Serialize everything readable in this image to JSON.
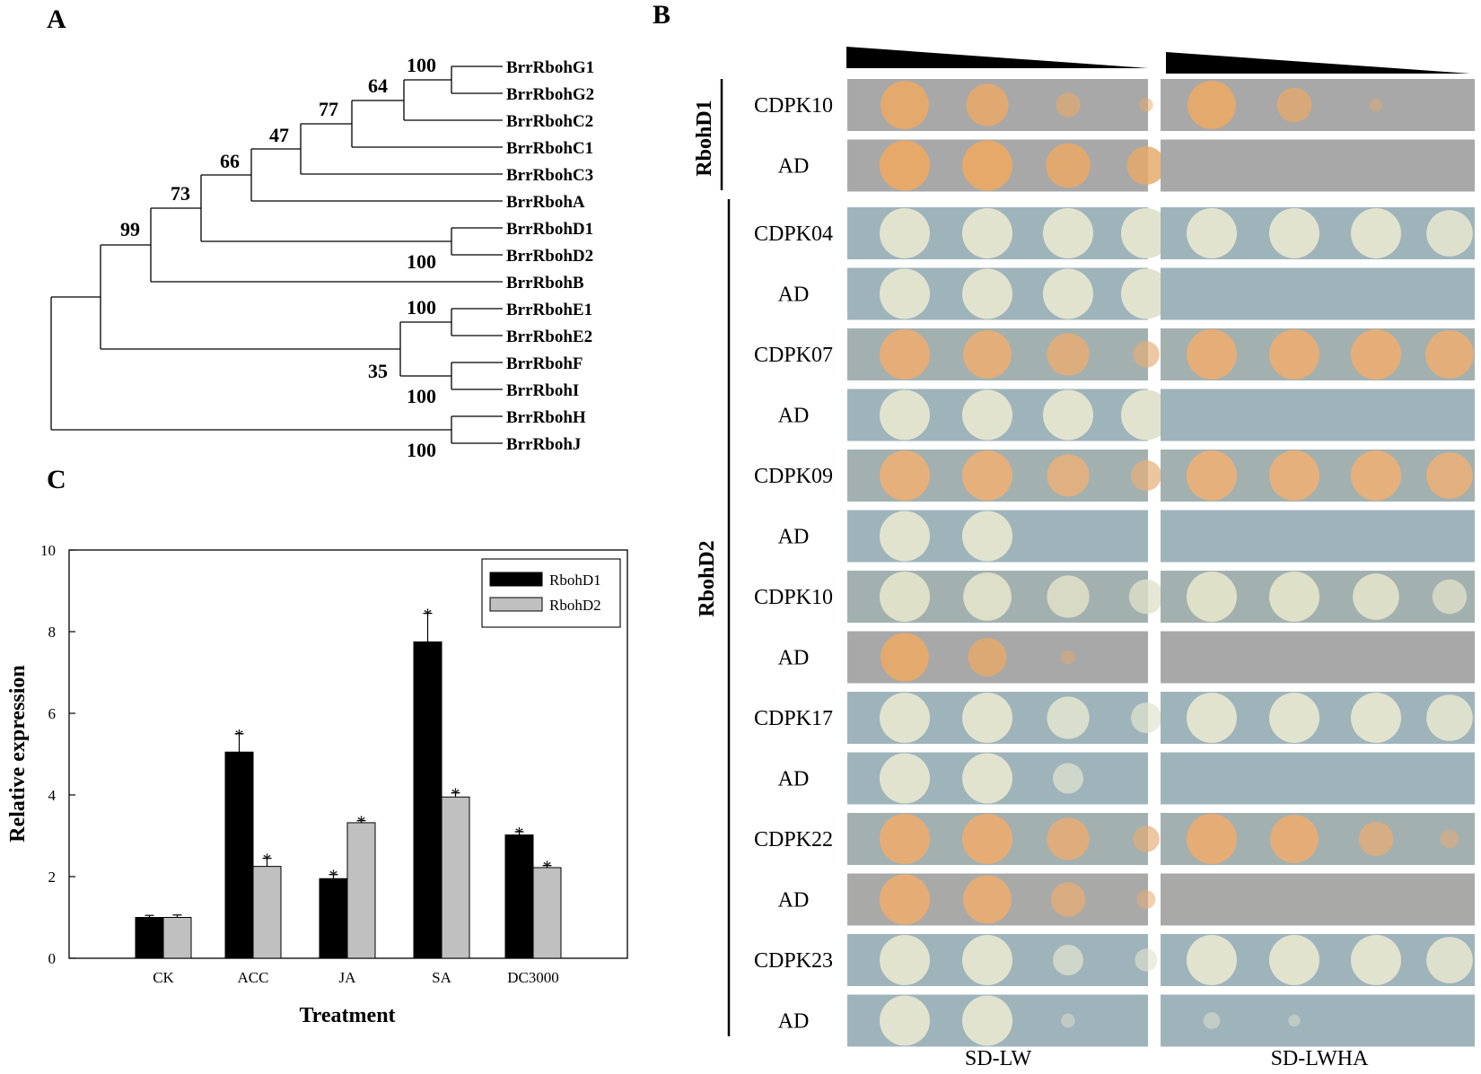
{
  "panels": {
    "a": "A",
    "b": "B",
    "c": "C"
  },
  "tree": {
    "taxa": [
      "BrrRbohG1",
      "BrrRbohG2",
      "BrrRbohC2",
      "BrrRbohC1",
      "BrrRbohC3",
      "BrrRbohA",
      "BrrRbohD1",
      "BrrRbohD2",
      "BrrRbohB",
      "BrrRbohE1",
      "BrrRbohE2",
      "BrrRbohF",
      "BrrRbohI",
      "BrrRbohH",
      "BrrRbohJ"
    ],
    "bootstrap": {
      "g1g2": "100",
      "g_c2": "64",
      "c1": "77",
      "c3": "47",
      "a": "66",
      "d": "73",
      "b": "99",
      "d1d2": "100",
      "e1e2": "100",
      "efi": "35",
      "fi": "100",
      "hj": "100"
    }
  },
  "y2h": {
    "groups": [
      "RbohD1",
      "RbohD2"
    ],
    "media": [
      "SD-LW",
      "SD-LWHA"
    ],
    "rows": [
      {
        "label": "CDPK10",
        "lw": [
          0.95,
          0.8,
          0.35,
          0.08
        ],
        "lwha": [
          0.95,
          0.6,
          0.05,
          0.0
        ],
        "plate": "#a9a8a8",
        "colony": "#e6a96a"
      },
      {
        "label": "AD",
        "lw": [
          1.0,
          1.0,
          0.85,
          0.7
        ],
        "lwha": [
          0.0,
          0.0,
          0.0,
          0.0
        ],
        "plate": "#a9a8a8",
        "colony": "#e6a96a"
      },
      {
        "label": "CDPK04",
        "lw": [
          1.0,
          1.0,
          1.0,
          1.0
        ],
        "lwha": [
          1.0,
          1.0,
          1.0,
          0.9
        ],
        "plate": "#9fb3bb",
        "colony": "#e1e3cf"
      },
      {
        "label": "AD",
        "lw": [
          1.0,
          1.0,
          1.0,
          1.0
        ],
        "lwha": [
          0.0,
          0.0,
          0.0,
          0.0
        ],
        "plate": "#9fb3bb",
        "colony": "#e1e3cf"
      },
      {
        "label": "CDPK07",
        "lw": [
          1.0,
          0.95,
          0.8,
          0.4
        ],
        "lwha": [
          1.0,
          1.0,
          1.0,
          0.95
        ],
        "plate": "#a2b0b0",
        "colony": "#e5ad78"
      },
      {
        "label": "AD",
        "lw": [
          1.0,
          1.0,
          1.0,
          1.0
        ],
        "lwha": [
          0.0,
          0.0,
          0.0,
          0.0
        ],
        "plate": "#9fb3bb",
        "colony": "#e1e3cf"
      },
      {
        "label": "CDPK09",
        "lw": [
          1.0,
          1.0,
          0.8,
          0.5
        ],
        "lwha": [
          1.0,
          1.0,
          1.0,
          0.9
        ],
        "plate": "#a2b0b0",
        "colony": "#e6b07c"
      },
      {
        "label": "AD",
        "lw": [
          1.0,
          1.0,
          0.0,
          0.0
        ],
        "lwha": [
          0.0,
          0.0,
          0.0,
          0.0
        ],
        "plate": "#9fb3bb",
        "colony": "#e1e3cf"
      },
      {
        "label": "CDPK10",
        "lw": [
          1.0,
          0.95,
          0.8,
          0.6
        ],
        "lwha": [
          1.0,
          1.0,
          0.9,
          0.6
        ],
        "plate": "#a2b0b0",
        "colony": "#dfe0c8"
      },
      {
        "label": "AD",
        "lw": [
          0.95,
          0.7,
          0.08,
          0.0
        ],
        "lwha": [
          0.0,
          0.0,
          0.0,
          0.0
        ],
        "plate": "#a9a8a8",
        "colony": "#e6a96a"
      },
      {
        "label": "CDPK17",
        "lw": [
          1.0,
          1.0,
          0.8,
          0.5
        ],
        "lwha": [
          1.0,
          1.0,
          1.0,
          0.9
        ],
        "plate": "#9fb3bb",
        "colony": "#e1e3cf"
      },
      {
        "label": "AD",
        "lw": [
          1.0,
          1.0,
          0.5,
          0.0
        ],
        "lwha": [
          0.0,
          0.0,
          0.0,
          0.0
        ],
        "plate": "#9fb3bb",
        "colony": "#e1e3cf"
      },
      {
        "label": "CDPK22",
        "lw": [
          1.0,
          1.0,
          0.8,
          0.4
        ],
        "lwha": [
          1.0,
          0.95,
          0.6,
          0.2
        ],
        "plate": "#a2b0b0",
        "colony": "#e6ac76"
      },
      {
        "label": "AD",
        "lw": [
          1.0,
          0.95,
          0.6,
          0.2
        ],
        "lwha": [
          0.0,
          0.0,
          0.0,
          0.0
        ],
        "plate": "#a9aaa8",
        "colony": "#e6ac76"
      },
      {
        "label": "CDPK23",
        "lw": [
          1.0,
          1.0,
          0.5,
          0.3
        ],
        "lwha": [
          1.0,
          1.0,
          1.0,
          0.9
        ],
        "plate": "#9fb3bb",
        "colony": "#e1e3cf"
      },
      {
        "label": "AD",
        "lw": [
          1.0,
          1.0,
          0.08,
          0.0
        ],
        "lwha": [
          0.15,
          0.03,
          0.0,
          0.0
        ],
        "plate": "#9fb3bb",
        "colony": "#e1e3cf"
      }
    ]
  },
  "chart_data": {
    "type": "bar",
    "categories": [
      "CK",
      "ACC",
      "JA",
      "SA",
      "DC3000"
    ],
    "series": [
      {
        "name": "RbohD1",
        "values": [
          1.0,
          5.05,
          1.95,
          7.75,
          3.02
        ],
        "errors": [
          0.05,
          0.45,
          0.1,
          0.7,
          0.08
        ],
        "significant": [
          false,
          true,
          true,
          true,
          true
        ],
        "color": "#000000"
      },
      {
        "name": "RbohD2",
        "values": [
          1.0,
          2.25,
          3.32,
          3.95,
          2.22
        ],
        "errors": [
          0.06,
          0.2,
          0.05,
          0.1,
          0.05
        ],
        "significant": [
          false,
          true,
          true,
          true,
          true
        ],
        "color": "#c0c0c0"
      }
    ],
    "xlabel": "Treatment",
    "ylabel": "Relative expression",
    "ylim": [
      0,
      10
    ],
    "yticks": [
      "0",
      "2",
      "4",
      "6",
      "8",
      "10"
    ],
    "significance_mark": "*",
    "legend_position": "top-right"
  }
}
